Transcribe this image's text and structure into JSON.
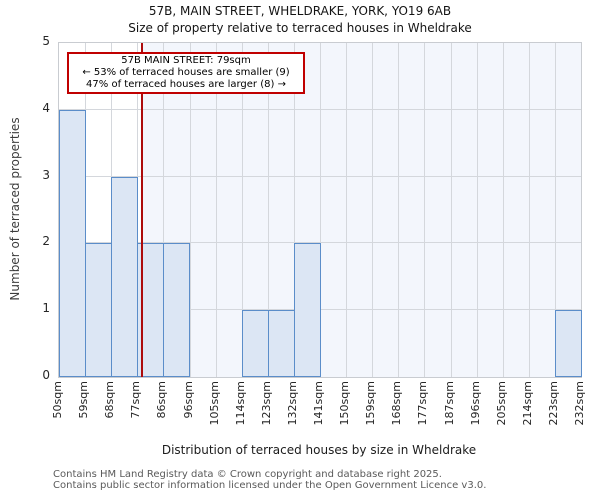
{
  "title": "57B, MAIN STREET, WHELDRAKE, YORK, YO19 6AB",
  "subtitle": "Size of property relative to terraced houses in Wheldrake",
  "annotation": {
    "line1": "57B MAIN STREET: 79sqm",
    "line2": "← 53% of terraced houses are smaller (9)",
    "line3": "47% of terraced houses are larger (8) →"
  },
  "chart_data": {
    "type": "bar",
    "title": "57B, MAIN STREET, WHELDRAKE, YORK, YO19 6AB",
    "subtitle": "Size of property relative to terraced houses in Wheldrake",
    "categories": [
      "50sqm",
      "59sqm",
      "68sqm",
      "77sqm",
      "86sqm",
      "96sqm",
      "105sqm",
      "114sqm",
      "123sqm",
      "132sqm",
      "141sqm",
      "150sqm",
      "159sqm",
      "168sqm",
      "177sqm",
      "187sqm",
      "196sqm",
      "205sqm",
      "214sqm",
      "223sqm",
      "232sqm"
    ],
    "values": [
      4,
      2,
      3,
      2,
      2,
      0,
      0,
      1,
      1,
      2,
      0,
      0,
      0,
      0,
      0,
      0,
      0,
      0,
      0,
      1
    ],
    "xlabel": "Distribution of terraced houses by size in Wheldrake",
    "ylabel": "Number of terraced properties",
    "ylim": [
      0,
      5
    ],
    "yticks": [
      0,
      1,
      2,
      3,
      4,
      5
    ],
    "grid": true,
    "marker": {
      "label": "57B MAIN STREET",
      "value_sqm": 79,
      "axis_min_sqm": 50,
      "axis_max_sqm": 232,
      "line_color": "#ad0c0c"
    },
    "colors": {
      "bar_fill": "#dce6f4",
      "bar_edge": "#5b8dc9",
      "shade_right_of_marker": "#f3f6fc",
      "gridline": "#d4d7dc",
      "marker_line": "#ad0c0c",
      "annotation_border": "#c00000"
    }
  },
  "footer": {
    "line1": "Contains HM Land Registry data © Crown copyright and database right 2025.",
    "line2": "Contains public sector information licensed under the Open Government Licence v3.0."
  }
}
